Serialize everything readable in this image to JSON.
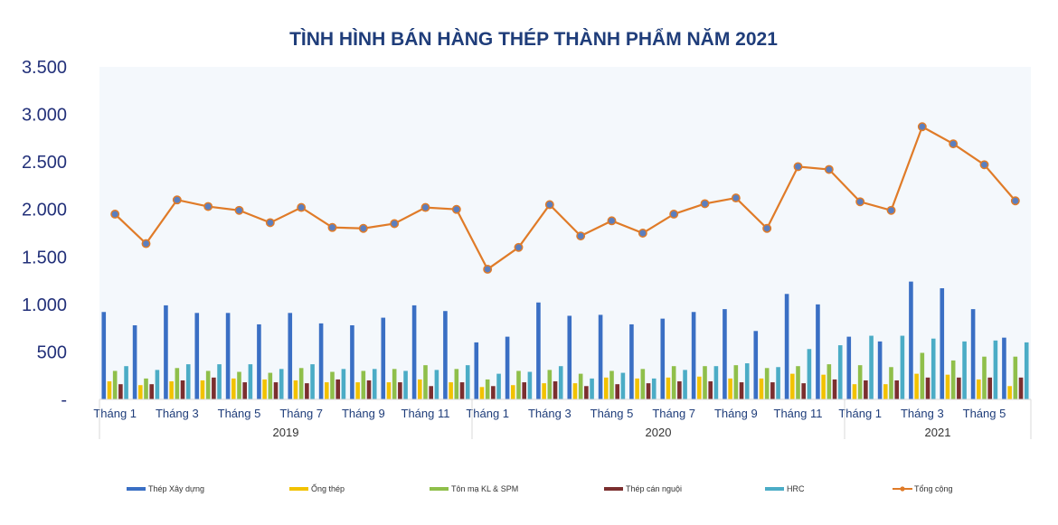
{
  "chart_data": {
    "type": "bar",
    "title": "TÌNH HÌNH BÁN HÀNG THÉP THÀNH PHẨM NĂM 2021",
    "ylim": [
      0,
      3500
    ],
    "yticks": [
      "-",
      "500",
      "1.000",
      "1.500",
      "2.000",
      "2.500",
      "3.000",
      "3.500"
    ],
    "grid": false,
    "legend_position": "bottom",
    "months": [
      "Tháng 1",
      "Tháng 2",
      "Tháng 3",
      "Tháng 4",
      "Tháng 5",
      "Tháng 6",
      "Tháng 7",
      "Tháng 8",
      "Tháng 9",
      "Tháng 10",
      "Tháng 11",
      "Tháng 12",
      "Tháng 1",
      "Tháng 2",
      "Tháng 3",
      "Tháng 4",
      "Tháng 5",
      "Tháng 6",
      "Tháng 7",
      "Tháng 8",
      "Tháng 9",
      "Tháng 10",
      "Tháng 11",
      "Tháng 12",
      "Tháng 1",
      "Tháng 2",
      "Tháng 3",
      "Tháng 4",
      "Tháng 5",
      "Tháng 6"
    ],
    "x_labels": [
      {
        "text": "Tháng 1",
        "index": 0
      },
      {
        "text": "Tháng 3",
        "index": 2
      },
      {
        "text": "Tháng 5",
        "index": 4
      },
      {
        "text": "Tháng 7",
        "index": 6
      },
      {
        "text": "Tháng 9",
        "index": 8
      },
      {
        "text": "Tháng 11",
        "index": 10
      },
      {
        "text": "Tháng 1",
        "index": 12
      },
      {
        "text": "Tháng 3",
        "index": 14
      },
      {
        "text": "Tháng 5",
        "index": 16
      },
      {
        "text": "Tháng 7",
        "index": 18
      },
      {
        "text": "Tháng 9",
        "index": 20
      },
      {
        "text": "Tháng 11",
        "index": 22
      },
      {
        "text": "Tháng 1",
        "index": 24
      },
      {
        "text": "Tháng 3",
        "index": 26
      },
      {
        "text": "Tháng 5",
        "index": 28
      }
    ],
    "years": [
      {
        "label": "2019",
        "start": 0,
        "end": 11
      },
      {
        "label": "2020",
        "start": 12,
        "end": 23
      },
      {
        "label": "2021",
        "start": 24,
        "end": 29
      }
    ],
    "series": [
      {
        "name": "Thép  Xây dựng",
        "kind": "bar",
        "color": "#3a6fc4",
        "values": [
          920,
          780,
          990,
          910,
          910,
          790,
          910,
          800,
          780,
          860,
          990,
          930,
          600,
          660,
          1020,
          880,
          890,
          790,
          850,
          920,
          950,
          720,
          1110,
          1000,
          660,
          610,
          1240,
          1170,
          950,
          650
        ]
      },
      {
        "name": "Ống thép",
        "kind": "bar",
        "color": "#f2c200",
        "values": [
          190,
          150,
          190,
          200,
          220,
          210,
          200,
          180,
          180,
          180,
          210,
          180,
          130,
          150,
          170,
          170,
          230,
          220,
          230,
          240,
          220,
          220,
          270,
          260,
          160,
          160,
          270,
          260,
          210,
          140
        ]
      },
      {
        "name": "Tôn mạ KL & SPM",
        "kind": "bar",
        "color": "#8fbf4a",
        "values": [
          300,
          220,
          330,
          300,
          290,
          280,
          330,
          290,
          300,
          320,
          360,
          320,
          210,
          300,
          310,
          270,
          300,
          320,
          350,
          350,
          360,
          330,
          350,
          370,
          360,
          340,
          490,
          410,
          450,
          450
        ]
      },
      {
        "name": "Thép  cán nguội",
        "kind": "bar",
        "color": "#7b2f2f",
        "values": [
          160,
          160,
          200,
          230,
          180,
          180,
          170,
          210,
          200,
          180,
          140,
          180,
          140,
          180,
          190,
          140,
          160,
          170,
          190,
          190,
          180,
          180,
          170,
          210,
          200,
          200,
          230,
          230,
          230,
          230
        ]
      },
      {
        "name": "HRC",
        "kind": "bar",
        "color": "#4bacc6",
        "values": [
          350,
          310,
          370,
          370,
          370,
          320,
          370,
          320,
          320,
          300,
          310,
          360,
          270,
          290,
          350,
          220,
          280,
          220,
          310,
          350,
          380,
          340,
          530,
          570,
          670,
          670,
          640,
          610,
          620,
          600
        ]
      },
      {
        "name": "Tổng cộng",
        "kind": "line",
        "color": "#e07b28",
        "marker_color": "#5b7fbf",
        "values": [
          1950,
          1640,
          2100,
          2030,
          1990,
          1860,
          2020,
          1810,
          1800,
          1850,
          2020,
          2000,
          1370,
          1600,
          2050,
          1720,
          1880,
          1750,
          1950,
          2060,
          2120,
          1800,
          2450,
          2420,
          2080,
          1990,
          2870,
          2690,
          2470,
          2090
        ]
      }
    ]
  }
}
